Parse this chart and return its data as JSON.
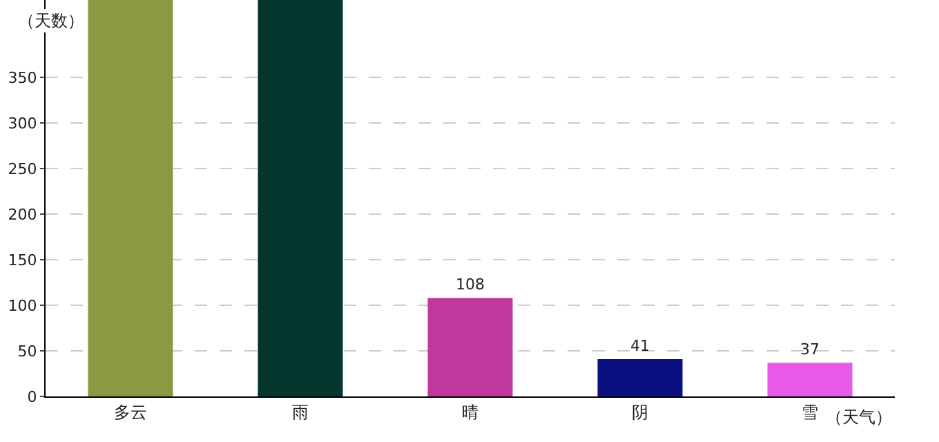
{
  "chart_data": {
    "type": "bar",
    "ylabel": "（天数）",
    "xlabel": "（天气）",
    "categories": [
      "多云",
      "雨",
      "晴",
      "阴",
      "雪"
    ],
    "values": [
      435,
      435,
      108,
      41,
      37
    ],
    "colors": [
      "#8a9a40",
      "#04362e",
      "#c0389c",
      "#0a1080",
      "#e85ae8"
    ],
    "value_labels": [
      null,
      null,
      "108",
      "41",
      "37"
    ],
    "ylim": [
      0,
      435
    ],
    "yticks": [
      0,
      50,
      100,
      150,
      200,
      250,
      300,
      350
    ],
    "grid": "y",
    "legend": false
  }
}
